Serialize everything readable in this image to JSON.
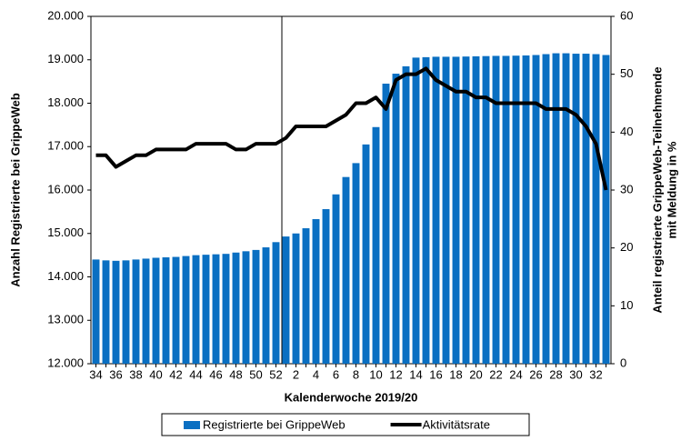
{
  "chart_data": {
    "type": "bar_line",
    "x_label": "Kalenderwoche 2019/20",
    "y_label": "Anzahl Registrierte bei GrippeWeb",
    "y2_label": [
      "Anteil registrierte GrippeWeb-Teilnehmende",
      "mit Meldung in %"
    ],
    "categories": [
      "34",
      null,
      "36",
      null,
      "38",
      null,
      "40",
      null,
      "42",
      null,
      "44",
      null,
      "46",
      null,
      "48",
      null,
      "50",
      null,
      "52",
      null,
      "2",
      null,
      "4",
      null,
      "6",
      null,
      "8",
      null,
      "10",
      null,
      "12",
      null,
      "14",
      null,
      "16",
      null,
      "18",
      null,
      "20",
      null,
      "22",
      null,
      "24",
      null,
      "26",
      null,
      "28",
      null,
      "30",
      null,
      "32",
      null
    ],
    "ylim": [
      12000,
      20000
    ],
    "yticks": [
      {
        "value": 12000,
        "label": "12.000"
      },
      {
        "value": 13000,
        "label": "13.000"
      },
      {
        "value": 14000,
        "label": "14.000"
      },
      {
        "value": 15000,
        "label": "15.000"
      },
      {
        "value": 16000,
        "label": "16.000"
      },
      {
        "value": 17000,
        "label": "17.000"
      },
      {
        "value": 18000,
        "label": "18.000"
      },
      {
        "value": 19000,
        "label": "19.000"
      },
      {
        "value": 20000,
        "label": "20.000"
      }
    ],
    "y2lim": [
      0,
      60
    ],
    "y2ticks": [
      0,
      10,
      20,
      30,
      40,
      50,
      60
    ],
    "series": [
      {
        "name": "Registrierte bei GrippeWeb",
        "type": "bar",
        "color": "#0a6fc2",
        "values": [
          14400,
          14380,
          14370,
          14380,
          14400,
          14420,
          14440,
          14450,
          14460,
          14480,
          14500,
          14510,
          14520,
          14530,
          14560,
          14590,
          14620,
          14680,
          14800,
          14930,
          15000,
          15120,
          15330,
          15560,
          15900,
          16300,
          16620,
          17050,
          17450,
          18450,
          18680,
          18850,
          19050,
          19060,
          19070,
          19070,
          19070,
          19075,
          19080,
          19085,
          19090,
          19090,
          19095,
          19100,
          19110,
          19130,
          19150,
          19150,
          19140,
          19140,
          19130,
          19110
        ]
      },
      {
        "name": "Aktivitätsrate",
        "type": "line",
        "axis": "y2",
        "color": "#000000",
        "values": [
          36,
          36,
          34,
          35,
          36,
          36,
          37,
          37,
          37,
          37,
          38,
          38,
          38,
          38,
          37,
          37,
          38,
          38,
          38,
          39,
          41,
          41,
          41,
          41,
          42,
          43,
          45,
          45,
          46,
          44,
          49,
          50,
          50,
          51,
          49,
          48,
          47,
          47,
          46,
          46,
          45,
          45,
          45,
          45,
          45,
          44,
          44,
          44,
          43,
          41,
          38,
          30
        ]
      }
    ]
  }
}
